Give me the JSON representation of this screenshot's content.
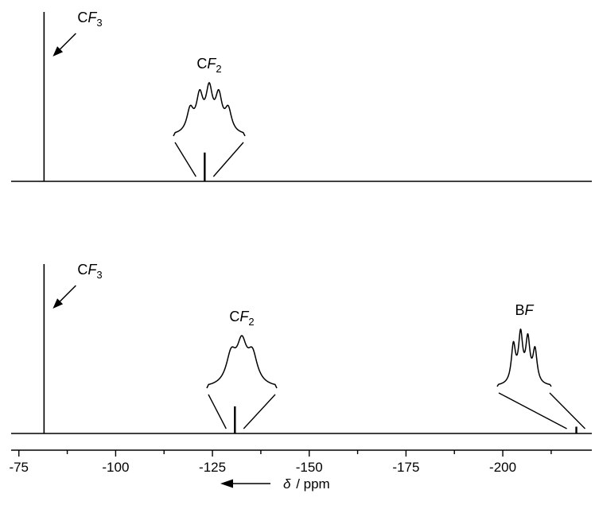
{
  "chart_data": {
    "type": "line",
    "x_axis": {
      "label_symbol": "δ",
      "label_unit": "/ ppm",
      "range": [
        -73,
        -223
      ],
      "reversed": true,
      "major_ticks": [
        -75,
        -100,
        -125,
        -150,
        -175,
        -200
      ],
      "tick_labels": [
        "-75",
        "-100",
        "-125",
        "-150",
        "-175",
        "-200"
      ],
      "minor_tick_step": 12.5,
      "direction_arrow": "left"
    },
    "spectra": [
      {
        "peaks": [
          {
            "label_main": "C",
            "label_italic": "F",
            "label_sub": "3",
            "shift": -81.5,
            "relative_height": 1.0,
            "callout": "arrow"
          },
          {
            "label_main": "C",
            "label_italic": "F",
            "label_sub": "2",
            "shift": -123.0,
            "relative_height": 0.17,
            "callout": "inset",
            "inset_multiplet": "quintet"
          }
        ]
      },
      {
        "peaks": [
          {
            "label_main": "C",
            "label_italic": "F",
            "label_sub": "3",
            "shift": -81.5,
            "relative_height": 1.0,
            "callout": "arrow"
          },
          {
            "label_main": "C",
            "label_italic": "F",
            "label_sub": "2",
            "shift": -130.8,
            "relative_height": 0.16,
            "callout": "inset",
            "inset_multiplet": "triplet"
          },
          {
            "label_main": "B",
            "label_italic": "F",
            "label_sub": "",
            "shift": -219.0,
            "relative_height": 0.04,
            "callout": "inset",
            "inset_multiplet": "quartet"
          }
        ]
      }
    ],
    "grid": false,
    "legend": "none"
  }
}
